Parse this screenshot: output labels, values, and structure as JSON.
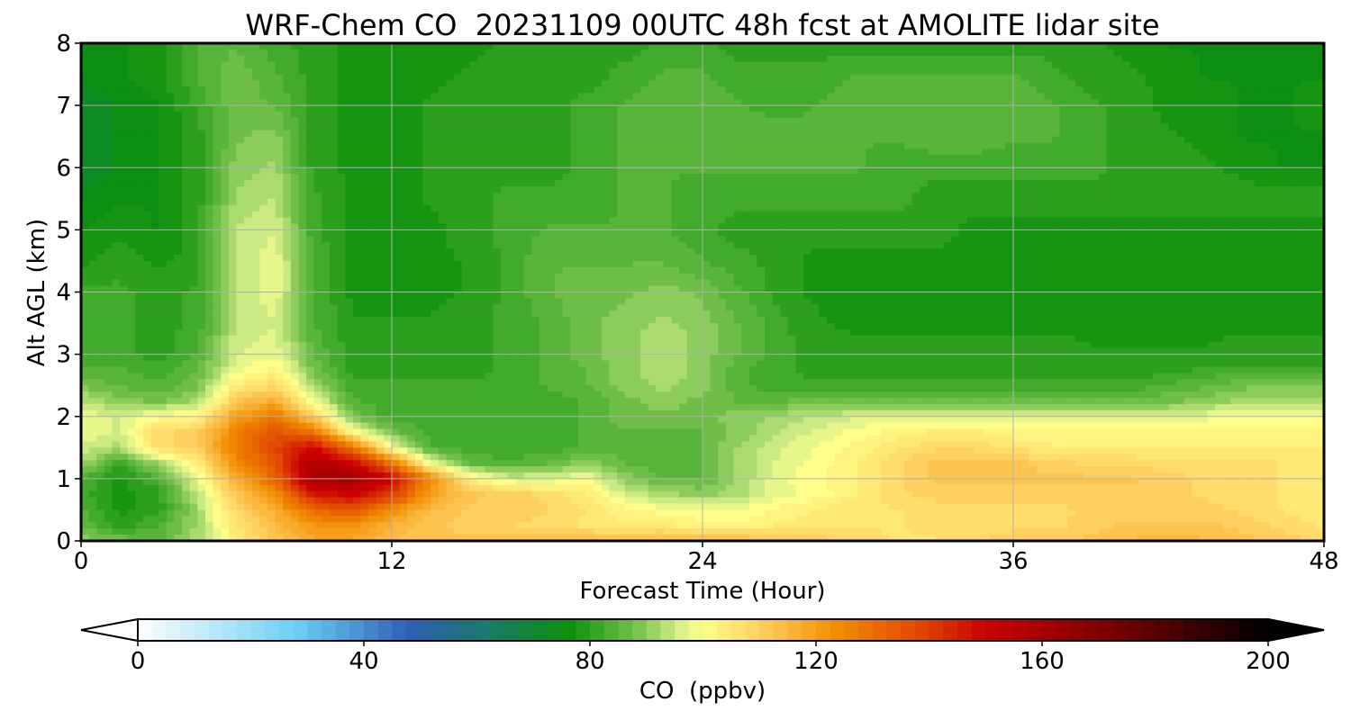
{
  "chart_data": {
    "type": "heatmap",
    "title": "WRF-Chem CO  20231109 00UTC 48h fcst at AMOLITE lidar site",
    "xlabel": "Forecast Time (Hour)",
    "ylabel": "Alt AGL (km)",
    "xlim": [
      0,
      48
    ],
    "ylim": [
      0,
      8
    ],
    "xticks": [
      0,
      12,
      24,
      36,
      48
    ],
    "yticks": [
      0,
      1,
      2,
      3,
      4,
      5,
      6,
      7,
      8
    ],
    "grid": true,
    "x": [
      0,
      1.5,
      3,
      4.5,
      6,
      7.5,
      9,
      10.5,
      12,
      13.5,
      15,
      16.5,
      18,
      19.5,
      21,
      22.5,
      24,
      25.5,
      27,
      28.5,
      30,
      31.5,
      33,
      34.5,
      36,
      37.5,
      39,
      40.5,
      42,
      43.5,
      45,
      46.5,
      48
    ],
    "y": [
      0,
      0.25,
      0.5,
      0.75,
      1,
      1.25,
      1.5,
      1.75,
      2,
      2.25,
      2.5,
      2.75,
      3,
      3.5,
      4,
      4.5,
      5,
      5.5,
      6,
      6.5,
      7,
      7.5,
      8
    ],
    "z": [
      [
        90,
        88,
        86,
        92,
        104,
        112,
        118,
        118,
        114,
        112,
        112,
        112,
        113,
        113,
        115,
        116,
        116,
        114,
        112,
        110,
        108,
        106,
        106,
        108,
        110,
        110,
        112,
        114,
        115,
        114,
        112,
        110,
        108
      ],
      [
        86,
        80,
        84,
        92,
        106,
        114,
        122,
        122,
        116,
        112,
        110,
        109,
        108,
        106,
        104,
        104,
        102,
        102,
        104,
        105,
        106,
        106,
        107,
        108,
        108,
        108,
        110,
        112,
        112,
        112,
        110,
        108,
        106
      ],
      [
        84,
        78,
        80,
        92,
        108,
        118,
        132,
        136,
        124,
        114,
        111,
        110,
        109,
        106,
        102,
        100,
        99,
        99,
        102,
        104,
        106,
        106,
        107,
        108,
        108,
        108,
        109,
        110,
        110,
        110,
        108,
        106,
        104
      ],
      [
        82,
        78,
        80,
        94,
        112,
        124,
        146,
        150,
        140,
        120,
        112,
        110,
        108,
        104,
        96,
        92,
        90,
        93,
        98,
        100,
        104,
        108,
        110,
        110,
        110,
        110,
        110,
        110,
        110,
        108,
        107,
        106,
        104
      ],
      [
        84,
        78,
        84,
        98,
        118,
        132,
        160,
        162,
        150,
        124,
        104,
        96,
        96,
        100,
        90,
        86,
        86,
        92,
        98,
        101,
        104,
        108,
        112,
        112,
        112,
        112,
        112,
        112,
        110,
        108,
        108,
        106,
        104
      ],
      [
        92,
        82,
        92,
        104,
        124,
        136,
        158,
        150,
        128,
        98,
        86,
        84,
        86,
        90,
        86,
        85,
        86,
        92,
        97,
        100,
        104,
        108,
        112,
        112,
        112,
        110,
        108,
        108,
        107,
        107,
        107,
        106,
        104
      ],
      [
        96,
        92,
        108,
        110,
        128,
        138,
        150,
        128,
        100,
        84,
        82,
        82,
        82,
        84,
        86,
        86,
        86,
        92,
        96,
        99,
        102,
        106,
        108,
        108,
        106,
        104,
        104,
        104,
        104,
        104,
        104,
        104,
        104
      ],
      [
        98,
        96,
        108,
        110,
        126,
        136,
        128,
        100,
        88,
        82,
        82,
        82,
        82,
        84,
        86,
        86,
        86,
        90,
        94,
        97,
        100,
        102,
        104,
        104,
        102,
        102,
        102,
        102,
        102,
        102,
        102,
        102,
        102
      ],
      [
        98,
        96,
        100,
        102,
        120,
        128,
        110,
        88,
        82,
        82,
        82,
        82,
        82,
        84,
        88,
        88,
        88,
        90,
        92,
        94,
        96,
        96,
        96,
        96,
        96,
        96,
        96,
        96,
        96,
        98,
        100,
        100,
        100
      ],
      [
        94,
        90,
        88,
        92,
        112,
        118,
        98,
        84,
        82,
        82,
        82,
        82,
        82,
        84,
        88,
        90,
        88,
        86,
        86,
        88,
        88,
        88,
        88,
        88,
        88,
        88,
        88,
        88,
        88,
        90,
        92,
        92,
        92
      ],
      [
        88,
        86,
        84,
        88,
        104,
        108,
        92,
        82,
        82,
        82,
        82,
        82,
        84,
        86,
        90,
        92,
        90,
        84,
        82,
        82,
        82,
        82,
        82,
        82,
        82,
        82,
        82,
        82,
        84,
        86,
        88,
        88,
        88
      ],
      [
        84,
        84,
        82,
        86,
        98,
        102,
        88,
        80,
        80,
        80,
        80,
        82,
        84,
        86,
        90,
        94,
        90,
        84,
        82,
        80,
        80,
        80,
        80,
        80,
        80,
        80,
        80,
        80,
        80,
        82,
        82,
        82,
        82
      ],
      [
        82,
        82,
        80,
        84,
        96,
        98,
        86,
        80,
        79,
        79,
        80,
        82,
        84,
        88,
        90,
        94,
        90,
        86,
        82,
        80,
        80,
        80,
        80,
        80,
        80,
        80,
        79,
        79,
        79,
        79,
        80,
        80,
        80
      ],
      [
        82,
        82,
        80,
        82,
        94,
        96,
        84,
        79,
        79,
        79,
        80,
        82,
        84,
        88,
        90,
        92,
        90,
        86,
        82,
        79,
        78,
        78,
        78,
        78,
        78,
        78,
        78,
        78,
        78,
        78,
        78,
        78,
        78
      ],
      [
        82,
        82,
        80,
        82,
        94,
        98,
        84,
        78,
        78,
        78,
        79,
        82,
        86,
        88,
        88,
        90,
        88,
        84,
        80,
        78,
        78,
        78,
        78,
        78,
        78,
        78,
        78,
        78,
        78,
        78,
        78,
        78,
        78
      ],
      [
        78,
        80,
        78,
        80,
        94,
        98,
        84,
        78,
        78,
        78,
        79,
        82,
        86,
        86,
        86,
        86,
        84,
        82,
        80,
        78,
        78,
        78,
        78,
        78,
        78,
        78,
        78,
        78,
        78,
        78,
        78,
        78,
        78
      ],
      [
        76,
        78,
        76,
        80,
        94,
        96,
        82,
        78,
        78,
        78,
        80,
        82,
        84,
        84,
        84,
        84,
        82,
        80,
        80,
        80,
        80,
        80,
        80,
        78,
        78,
        78,
        78,
        78,
        78,
        78,
        78,
        78,
        78
      ],
      [
        74,
        76,
        76,
        80,
        92,
        94,
        82,
        78,
        78,
        79,
        80,
        82,
        82,
        82,
        84,
        84,
        82,
        82,
        82,
        82,
        82,
        82,
        80,
        80,
        80,
        80,
        80,
        80,
        80,
        80,
        80,
        80,
        80
      ],
      [
        72,
        74,
        76,
        80,
        90,
        92,
        80,
        78,
        78,
        79,
        80,
        80,
        80,
        82,
        84,
        84,
        84,
        84,
        84,
        84,
        84,
        82,
        82,
        82,
        82,
        82,
        82,
        80,
        80,
        79,
        78,
        76,
        76
      ],
      [
        72,
        74,
        76,
        80,
        88,
        90,
        80,
        78,
        78,
        79,
        80,
        80,
        80,
        82,
        84,
        86,
        86,
        86,
        86,
        84,
        84,
        84,
        86,
        86,
        84,
        84,
        82,
        80,
        79,
        78,
        76,
        76,
        76
      ],
      [
        72,
        74,
        76,
        82,
        88,
        86,
        80,
        78,
        78,
        79,
        80,
        80,
        80,
        82,
        84,
        86,
        86,
        84,
        82,
        84,
        86,
        86,
        86,
        86,
        86,
        84,
        82,
        80,
        78,
        78,
        76,
        76,
        78
      ],
      [
        74,
        76,
        78,
        84,
        88,
        84,
        80,
        78,
        78,
        78,
        79,
        80,
        80,
        80,
        82,
        84,
        84,
        82,
        82,
        82,
        84,
        84,
        84,
        84,
        84,
        82,
        80,
        79,
        78,
        76,
        76,
        76,
        76
      ],
      [
        74,
        76,
        78,
        84,
        86,
        82,
        80,
        78,
        78,
        78,
        78,
        79,
        79,
        80,
        80,
        82,
        82,
        80,
        80,
        80,
        80,
        80,
        80,
        80,
        80,
        80,
        79,
        78,
        76,
        76,
        76,
        76,
        76
      ]
    ],
    "colorbar": {
      "label": "CO  (ppbv)",
      "min": 0,
      "max": 200,
      "ticks": [
        0,
        40,
        80,
        120,
        160,
        200
      ],
      "extend": "both",
      "colors": [
        [
          0,
          "#ffffff"
        ],
        [
          28,
          "#6ccff6"
        ],
        [
          48,
          "#2e5fb4"
        ],
        [
          62,
          "#1a7a6b"
        ],
        [
          76,
          "#0a8f0a"
        ],
        [
          88,
          "#72c04a"
        ],
        [
          96,
          "#d8f08c"
        ],
        [
          100,
          "#ffff8a"
        ],
        [
          110,
          "#ffd060"
        ],
        [
          124,
          "#f28c00"
        ],
        [
          138,
          "#e04800"
        ],
        [
          150,
          "#cc0000"
        ],
        [
          176,
          "#6a0000"
        ],
        [
          200,
          "#000000"
        ]
      ]
    }
  }
}
